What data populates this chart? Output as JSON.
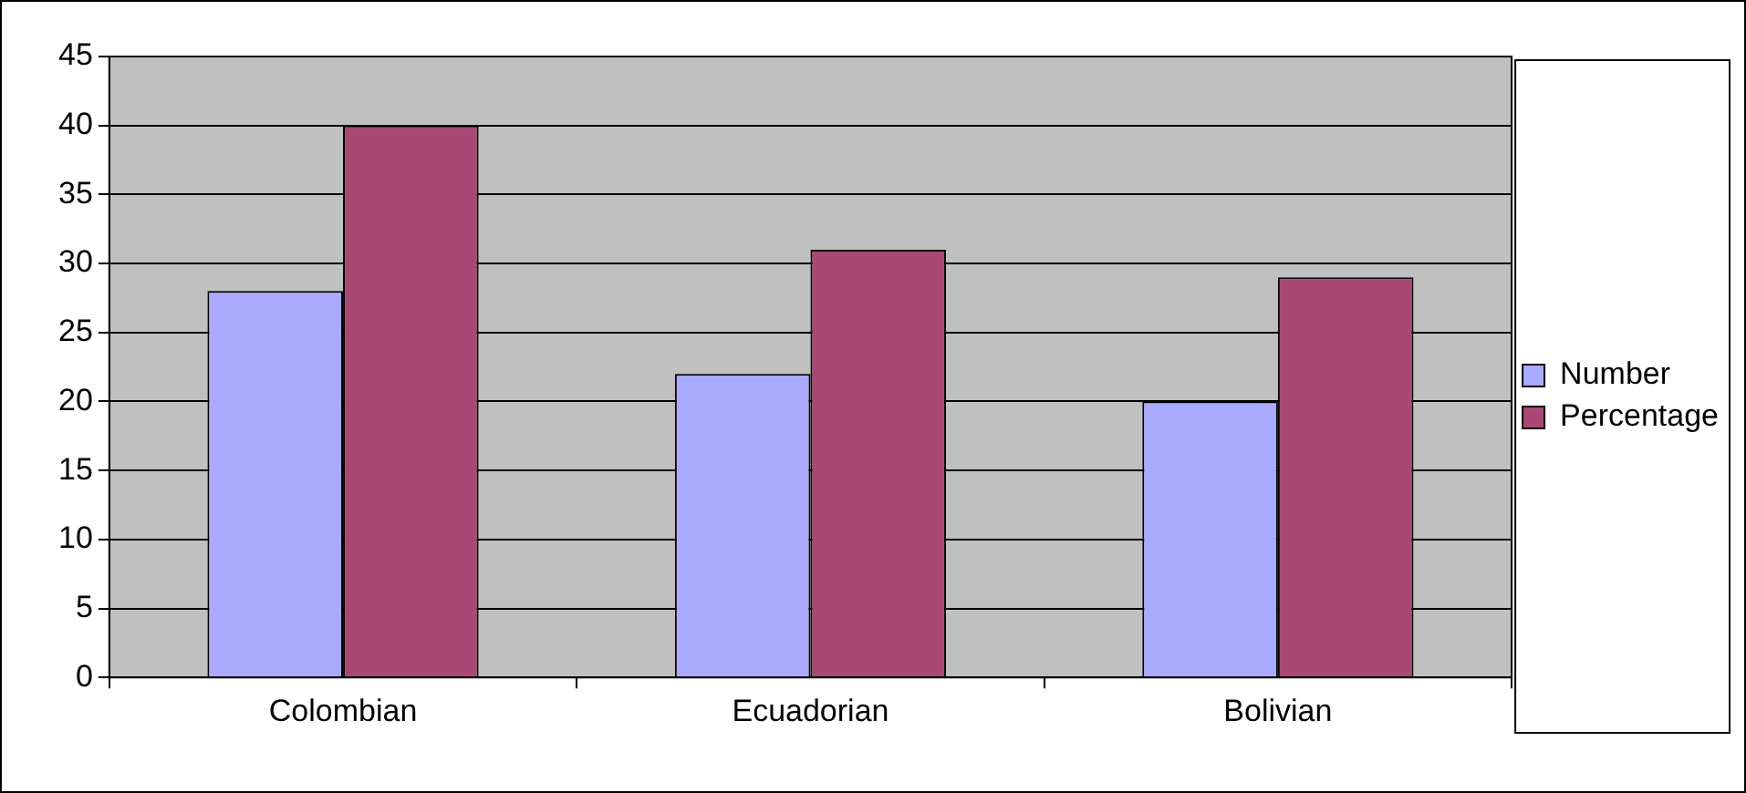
{
  "chart_data": {
    "type": "bar",
    "categories": [
      "Colombian",
      "Ecuadorian",
      "Bolivian"
    ],
    "series": [
      {
        "name": "Number",
        "color": "#aaaaff",
        "values": [
          28,
          22,
          20
        ]
      },
      {
        "name": "Percentage",
        "color": "#a94874",
        "values": [
          40,
          31,
          29
        ]
      }
    ],
    "ylim": [
      0,
      45
    ],
    "yticks": [
      0,
      5,
      10,
      15,
      20,
      25,
      30,
      35,
      40,
      45
    ],
    "grid": "y",
    "legend": "right"
  }
}
